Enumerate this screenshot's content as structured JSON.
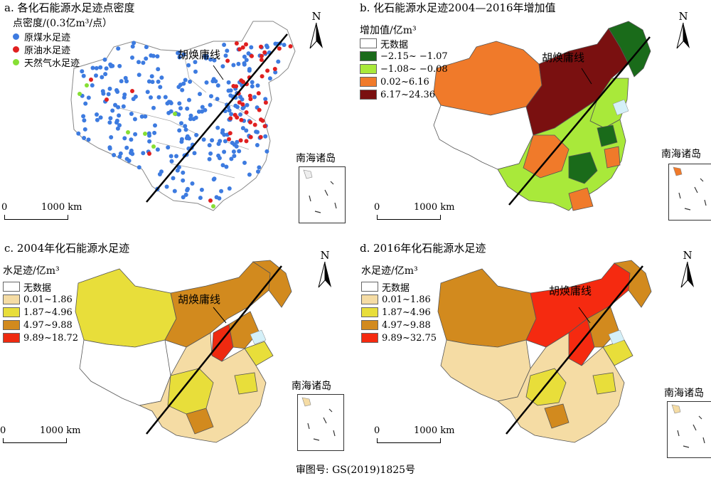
{
  "colors": {
    "coal": "#3d7be0",
    "oil": "#e02020",
    "gas": "#86df34",
    "no_data": "#ffffff",
    "b1": "#1a6b1a",
    "b2": "#a9e93a",
    "b3": "#f07a2a",
    "b4": "#7a1010",
    "c1": "#f5dca4",
    "c2": "#e8de3a",
    "c3": "#d28a1e",
    "c4": "#ee2a10",
    "d1": "#f5dca4",
    "d2": "#e8de3a",
    "d3": "#d28a1e",
    "d4": "#f52a10"
  },
  "panel_a": {
    "title": "a. 各化石能源水足迹点密度",
    "legend_title": "点密度/(0.3亿m³/点）",
    "legend": [
      "原煤水足迹",
      "原油水足迹",
      "天然气水足迹"
    ]
  },
  "panel_b": {
    "title": "b. 化石能源水足迹2004—2016年增加值",
    "legend_title": "增加值/亿m³",
    "legend": [
      "无数据",
      "−2.15~ −1.07",
      "−1.08~ −0.08",
      "0.02~6.16",
      "6.17~24.36"
    ]
  },
  "panel_c": {
    "title": "c. 2004年化石能源水足迹",
    "legend_title": "水足迹/亿m³",
    "legend": [
      "无数据",
      "0.01~1.86",
      "1.87~4.96",
      "4.97~9.88",
      "9.89~18.72"
    ]
  },
  "panel_d": {
    "title": "d. 2016年化石能源水足迹",
    "legend_title": "水足迹/亿m³",
    "legend": [
      "无数据",
      "0.01~1.86",
      "1.87~4.96",
      "4.97~9.88",
      "9.89~32.75"
    ]
  },
  "hu_line_label": "胡焕庸线",
  "north_label": "N",
  "scale": {
    "zero": "0",
    "length": "1000 km"
  },
  "inset_label": "南海诸岛",
  "approval": "审图号: GS(2019)1825号"
}
